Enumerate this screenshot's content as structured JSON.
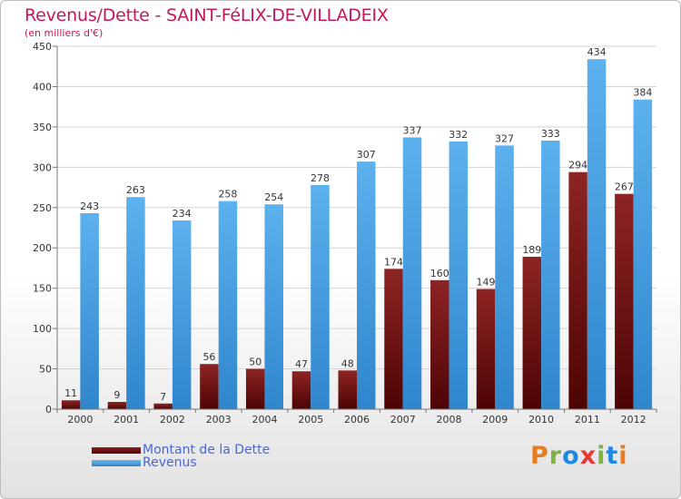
{
  "title": "Revenus/Dette - SAINT-FéLIX-DE-VILLADEIX",
  "subtitle": "(en milliers d'€)",
  "colors": {
    "dette": "#7a1515",
    "revenus": "#4aa3e6",
    "title": "#c2185b",
    "legend_text": "#4a68d6"
  },
  "legend": [
    {
      "label": "Montant de la Dette",
      "color_key": "dette"
    },
    {
      "label": "Revenus",
      "color_key": "revenus"
    }
  ],
  "logo": {
    "text": "Proxiti",
    "letter_colors": [
      "#e57c1f",
      "#7cb342",
      "#1e88e5",
      "#e53935",
      "#7cb342",
      "#1e88e5",
      "#e57c1f"
    ]
  },
  "chart_data": {
    "type": "bar",
    "title": "Revenus/Dette - SAINT-FéLIX-DE-VILLADEIX",
    "subtitle": "(en milliers d'€)",
    "categories": [
      "2000",
      "2001",
      "2002",
      "2003",
      "2004",
      "2005",
      "2006",
      "2007",
      "2008",
      "2009",
      "2010",
      "2011",
      "2012"
    ],
    "series": [
      {
        "name": "Montant de la Dette",
        "values": [
          11,
          9,
          7,
          56,
          50,
          47,
          48,
          174,
          160,
          149,
          189,
          294,
          267
        ]
      },
      {
        "name": "Revenus",
        "values": [
          243,
          263,
          234,
          258,
          254,
          278,
          307,
          337,
          332,
          327,
          333,
          434,
          384
        ]
      }
    ],
    "yticks": [
      0,
      50,
      100,
      150,
      200,
      250,
      300,
      350,
      400,
      450
    ],
    "ylim": [
      0,
      450
    ],
    "grid": true,
    "legend_position": "bottom-left"
  }
}
